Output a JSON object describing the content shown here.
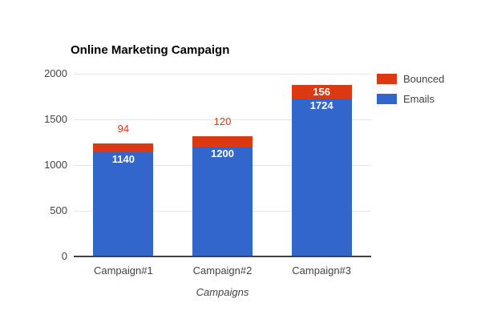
{
  "chart_data": {
    "type": "bar",
    "stacked": true,
    "title": "Online Marketing Campaign",
    "xlabel": "Campaigns",
    "ylabel": "",
    "categories": [
      "Campaign#1",
      "Campaign#2",
      "Campaign#3"
    ],
    "series": [
      {
        "name": "Emails",
        "color": "#3366CC",
        "values": [
          1140,
          1200,
          1724
        ]
      },
      {
        "name": "Bounced",
        "color": "#DC3912",
        "values": [
          94,
          120,
          156
        ]
      }
    ],
    "totals": [
      1234,
      1320,
      1880
    ],
    "ylim": [
      0,
      2000
    ],
    "yticks": [
      0,
      500,
      1000,
      1500,
      2000
    ],
    "grid": true,
    "legend_position": "right",
    "annotations": {
      "emails_labels": [
        "1140",
        "1200",
        "1724"
      ],
      "bounced_labels": [
        "94",
        "120",
        "156"
      ]
    }
  },
  "legend": {
    "items": [
      {
        "label": "Bounced",
        "color": "#DC3912"
      },
      {
        "label": "Emails",
        "color": "#3366CC"
      }
    ]
  },
  "colors": {
    "emails": "#3366CC",
    "bounced": "#DC3912",
    "gridline": "#e6e6e6",
    "axis_line": "#424242",
    "tick_text": "#444444",
    "title_text": "#000000",
    "inside_label_text": "#ffffff"
  }
}
